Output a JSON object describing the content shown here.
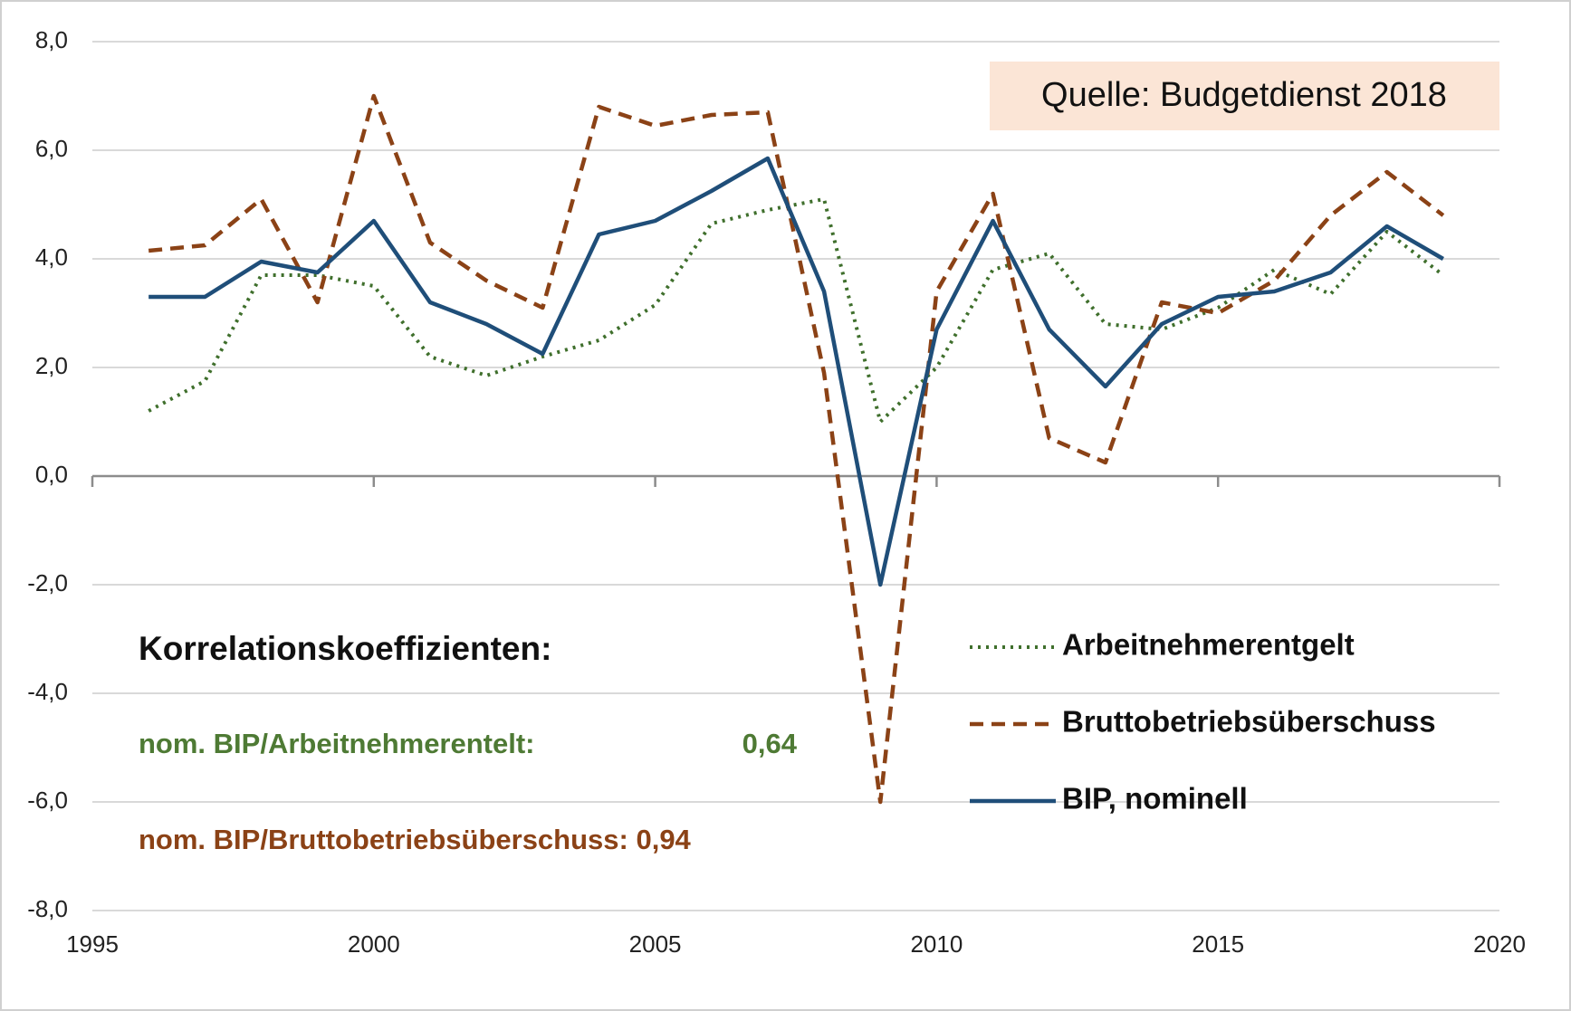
{
  "chart_data": {
    "type": "line",
    "x": [
      1996,
      1997,
      1998,
      1999,
      2000,
      2001,
      2002,
      2003,
      2004,
      2005,
      2006,
      2007,
      2008,
      2009,
      2010,
      2011,
      2012,
      2013,
      2014,
      2015,
      2016,
      2017,
      2018,
      2019
    ],
    "xlim": [
      1995,
      2020
    ],
    "xticks": [
      1995,
      2000,
      2005,
      2010,
      2015,
      2020
    ],
    "ylim": [
      -8,
      8
    ],
    "yticks": [
      {
        "value": -8,
        "label": "-8,0"
      },
      {
        "value": -6,
        "label": "-6,0"
      },
      {
        "value": -4,
        "label": "-4,0"
      },
      {
        "value": -2,
        "label": "-2,0"
      },
      {
        "value": 0,
        "label": "0,0"
      },
      {
        "value": 2,
        "label": "2,0"
      },
      {
        "value": 4,
        "label": "4,0"
      },
      {
        "value": 6,
        "label": "6,0"
      },
      {
        "value": 8,
        "label": "8,0"
      }
    ],
    "grid": true,
    "series": [
      {
        "name": "Arbeitnehmerentgelt",
        "color": "#3f6f2c",
        "line_style": "dotted",
        "values": [
          1.2,
          1.75,
          3.7,
          3.7,
          3.5,
          2.2,
          1.85,
          2.2,
          2.5,
          3.15,
          4.65,
          4.9,
          5.1,
          1.0,
          2.0,
          3.8,
          4.1,
          2.8,
          2.7,
          3.1,
          3.8,
          3.35,
          4.5,
          3.7
        ]
      },
      {
        "name": "Bruttobetriebsüberschuss",
        "color": "#8b4216",
        "line_style": "dashed",
        "values": [
          4.15,
          4.25,
          5.1,
          3.2,
          7.0,
          4.3,
          3.6,
          3.1,
          6.8,
          6.45,
          6.65,
          6.7,
          1.9,
          -6.0,
          3.4,
          5.2,
          0.7,
          0.25,
          3.2,
          3.0,
          3.6,
          4.8,
          5.6,
          4.8
        ]
      },
      {
        "name": "BIP, nominell",
        "color": "#1f4e79",
        "line_style": "solid",
        "values": [
          3.3,
          3.3,
          3.95,
          3.75,
          4.7,
          3.2,
          2.8,
          2.25,
          4.45,
          4.7,
          5.25,
          5.85,
          3.4,
          -2.0,
          2.7,
          4.7,
          2.7,
          1.65,
          2.8,
          3.3,
          3.4,
          3.75,
          4.6,
          4.0
        ]
      }
    ],
    "annotations": {
      "source": "Quelle: Budgetdienst 2018",
      "corr_title": "Korrelationskoeffizienten:",
      "corr_1_label": "nom. BIP/Arbeitnehmerentelt:",
      "corr_1_value": "0,64",
      "corr_2": "nom. BIP/Bruttobetriebsüberschuss: 0,94"
    }
  }
}
